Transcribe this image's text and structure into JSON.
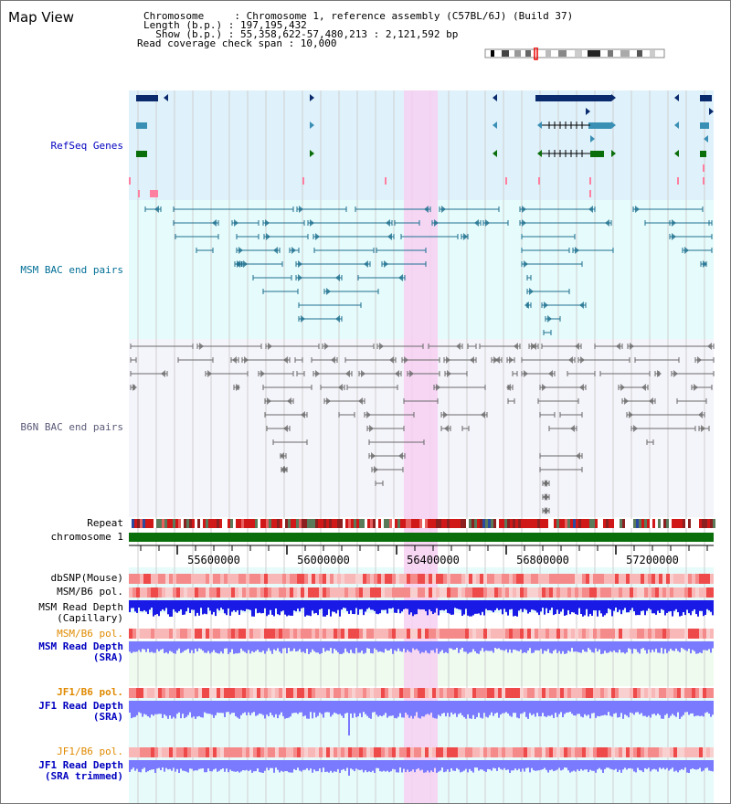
{
  "view": {
    "title": "Map View",
    "info": {
      "chromosome_line": "Chromosome     : Chromosome 1, reference assembly (C57BL/6J) (Build 37)",
      "length_line": "Length (b.p.) : 197,195,432",
      "show_line": "  Show (b.p.) : 55,358,622-57,480,213 : 2,121,592 bp",
      "coverage_line": "Read coverage check span : 10,000"
    }
  },
  "tracks": {
    "refseq": "RefSeq Genes",
    "msm_bac": "MSM BAC end pairs",
    "b6n_bac": "B6N BAC end pairs",
    "repeat": "Repeat",
    "chromosome": "chromosome 1",
    "dbsnp": "dbSNP(Mouse)",
    "msm_b6_pol": "MSM/B6 pol.",
    "msm_depth_cap": "MSM Read Depth\n(Capillary)",
    "msm_b6_pol_sra": "MSM/B6 pol.",
    "msm_depth_sra": "MSM Read Depth\n(SRA)",
    "jf1_b6_pol": "JF1/B6 pol.",
    "jf1_depth_sra": "JF1 Read Depth\n(SRA)",
    "jf1_b6_pol_trim": "JF1/B6 pol.",
    "jf1_depth_trim": "JF1 Read Depth\n(SRA trimmed)"
  },
  "axis": {
    "ticks": [
      "55600000",
      "56000000",
      "56400000",
      "56800000",
      "57200000"
    ]
  },
  "colors": {
    "refseq_bg": "#dff2fb",
    "msm_bg": "#e6fbfb",
    "b6n_bg": "#f4f4fb",
    "highlight": "#f7d0f2",
    "gene_navy": "#0a2a6e",
    "gene_teal": "#3a8fb5",
    "gene_green": "#0a6e0a",
    "msm_line": "#1d6f8f",
    "b6n_line": "#6a6a6a",
    "depth_blue": "#1a1ae6",
    "depth_light": "#7a7aff"
  }
}
